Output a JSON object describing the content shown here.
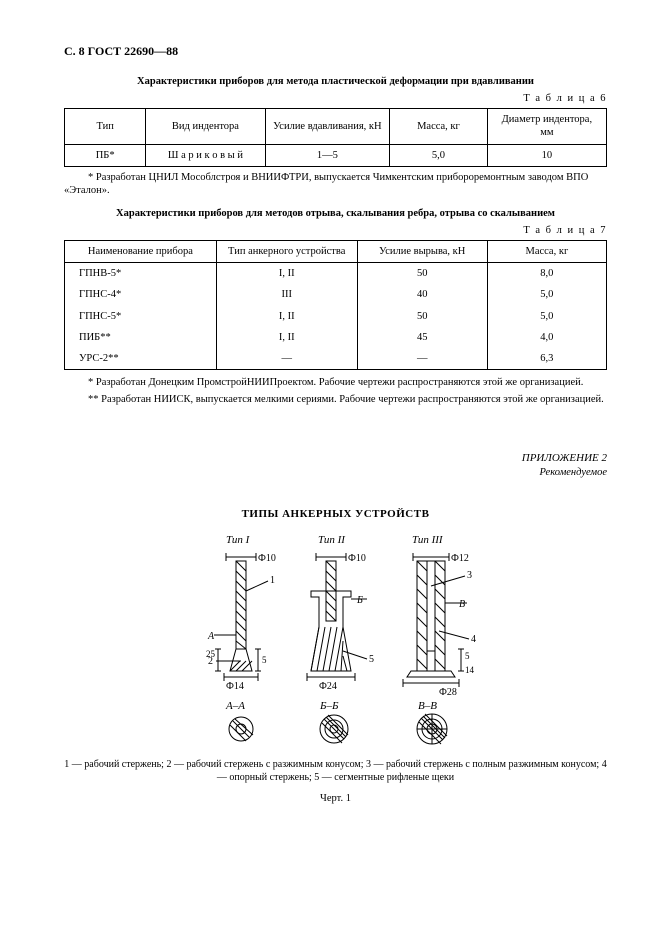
{
  "header": "С. 8 ГОСТ 22690—88",
  "t6": {
    "caption": "Характеристики приборов для метода пластической деформации при вдавливании",
    "label": "Т а б л и ц а   6",
    "cols": [
      "Тип",
      "Вид индентора",
      "Усилие вдавливания,\nкН",
      "Масса, кг",
      "Диаметр индентора,\nмм"
    ],
    "rows": [
      [
        "ПБ*",
        "Ш а р и к о в ы й",
        "1—5",
        "5,0",
        "10"
      ]
    ],
    "note": "* Разработан ЦНИЛ Мособлстроя и ВНИИФТРИ, выпускается Чимкентским прибороремонтным заводом ВПО «Эталон»."
  },
  "t7": {
    "caption": "Характеристики приборов для методов отрыва, скалывания ребра, отрыва со скалыванием",
    "label": "Т а б л и ц а   7",
    "cols": [
      "Наименование прибора",
      "Тип анкерного устройства",
      "Усилие вырыва, кН",
      "Масса, кг"
    ],
    "rows": [
      [
        "ГПНВ-5*",
        "I, II",
        "50",
        "8,0"
      ],
      [
        "ГПНС-4*",
        "III",
        "40",
        "5,0"
      ],
      [
        "ГПНС-5*",
        "I, II",
        "50",
        "5,0"
      ],
      [
        "ПИБ**",
        "I, II",
        "45",
        "4,0"
      ],
      [
        "УРС-2**",
        "—",
        "—",
        "6,3"
      ]
    ],
    "note1": "* Разработан Донецким ПромстройНИИПроектом. Рабочие чертежи распространяются этой же организацией.",
    "note2": "** Разработан НИИСК, выпускается мелкими сериями. Рабочие чертежи распространяются этой же организацией."
  },
  "appendix": {
    "title": "ПРИЛОЖЕНИЕ 2",
    "sub": "Рекомендуемое"
  },
  "section": "ТИПЫ АНКЕРНЫХ УСТРОЙСТВ",
  "fig": {
    "types": [
      "Тип I",
      "Тип II",
      "Тип III"
    ],
    "d_top": [
      "Ф10",
      "Ф10",
      "Ф12"
    ],
    "d_bot": [
      "Ф14",
      "Ф24",
      "Ф28"
    ],
    "sec": [
      "А–А",
      "Б–Б",
      "В–В"
    ],
    "side": [
      "А",
      "Б",
      "В"
    ],
    "dims": {
      "I": [
        "1",
        "2",
        "5",
        "25"
      ],
      "II": [
        "5"
      ],
      "III": [
        "3",
        "4",
        "5",
        "14"
      ]
    },
    "stroke": "#000",
    "fill": "#fff",
    "hatch": "#000"
  },
  "legend": "1 — рабочий стержень; 2 — рабочий стержень с разжимным конусом; 3 — рабочий стержень с полным разжимным конусом; 4 — опорный стержень; 5 — сегментные рифленые щеки",
  "figlabel": "Черт. 1"
}
